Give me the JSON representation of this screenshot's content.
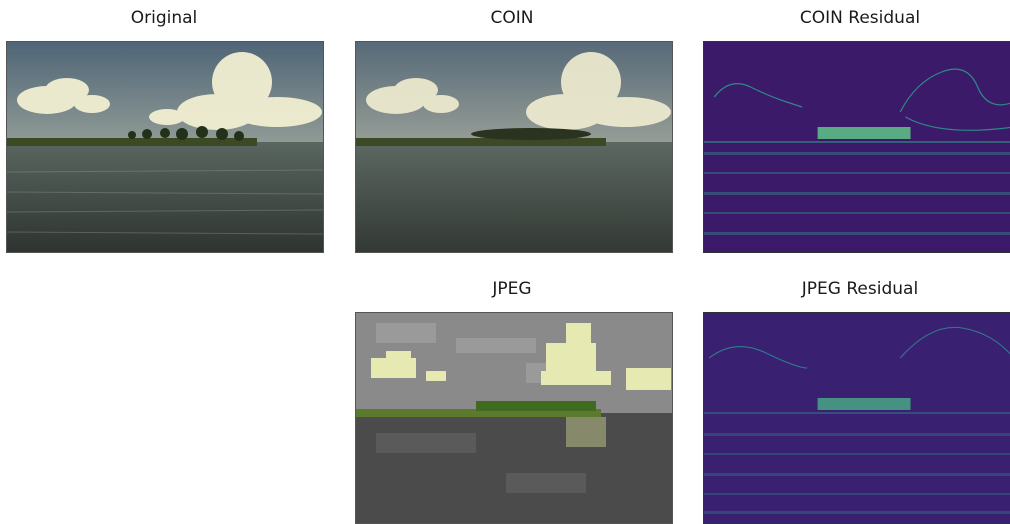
{
  "panels": {
    "original": {
      "title": "Original"
    },
    "coin": {
      "title": "COIN"
    },
    "coin_residual": {
      "title": "COIN Residual"
    },
    "jpeg": {
      "title": "JPEG"
    },
    "jpeg_residual": {
      "title": "JPEG Residual"
    }
  },
  "colors": {
    "sky": "#6f7f8c",
    "cloud": "#f2f0d6",
    "water": "#3d4440",
    "land": "#3a4a22",
    "residual_bg": "#3d1a6b",
    "residual_edge": "#2fb59a",
    "jpeg_gray": "#8a8a8a"
  }
}
